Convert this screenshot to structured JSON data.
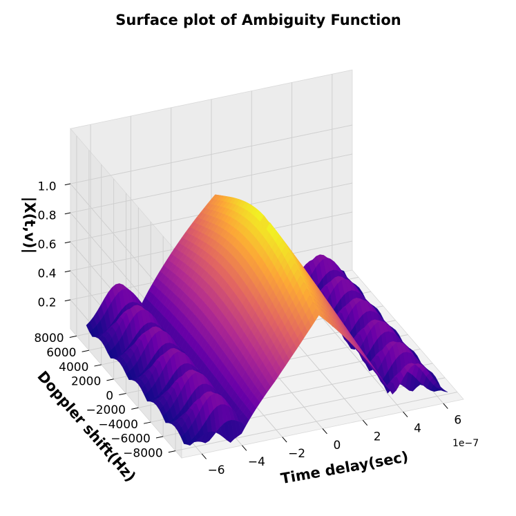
{
  "title": "Surface plot of Ambiguity Function",
  "chart_data": {
    "type": "surface",
    "title": "Surface plot of Ambiguity Function",
    "xlabel": "Time delay(sec)",
    "ylabel": "Doppler shift(Hz)",
    "zlabel": "|X(t,v)|",
    "x_offset_label": "1e−7",
    "xlim": [
      -7e-07,
      7e-07
    ],
    "ylim": [
      -9000,
      9000
    ],
    "zlim": [
      0,
      1.0
    ],
    "x_ticks": [
      -6e-07,
      -4e-07,
      -2e-07,
      0,
      2e-07,
      4e-07,
      6e-07
    ],
    "x_tick_labels": [
      "−6",
      "−4",
      "−2",
      "0",
      "2",
      "4",
      "6"
    ],
    "y_ticks": [
      -8000,
      -6000,
      -4000,
      -2000,
      0,
      2000,
      4000,
      6000,
      8000
    ],
    "y_tick_labels": [
      "−8000",
      "−6000",
      "−4000",
      "−2000",
      "0",
      "2000",
      "4000",
      "6000",
      "8000"
    ],
    "z_ticks": [
      0.2,
      0.4,
      0.6,
      0.8,
      1.0
    ],
    "z_tick_labels": [
      "0.2",
      "0.4",
      "0.6",
      "0.8",
      "1.0"
    ],
    "colormap": "plasma",
    "colormap_stops": [
      "#0d0887",
      "#6a00a8",
      "#b12a90",
      "#e16462",
      "#fca636",
      "#f0f921"
    ],
    "peak_value": 1.0,
    "grid": true
  }
}
